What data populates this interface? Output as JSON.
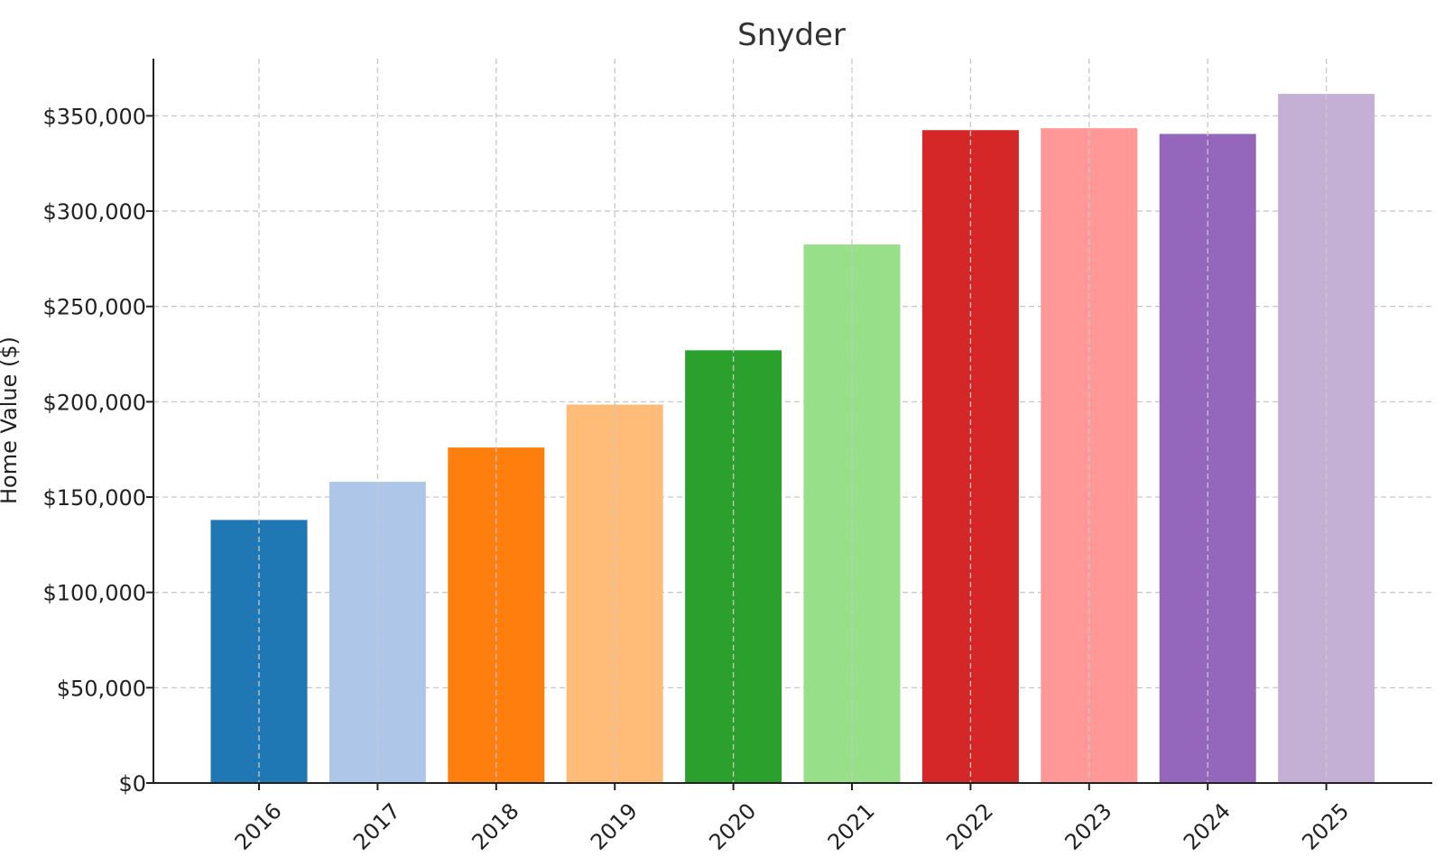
{
  "chart_data": {
    "type": "bar",
    "title": "Snyder",
    "xlabel": "",
    "ylabel": "Home Value ($)",
    "categories": [
      "2016",
      "2017",
      "2018",
      "2019",
      "2020",
      "2021",
      "2022",
      "2023",
      "2024",
      "2025"
    ],
    "values": [
      138000,
      158000,
      176000,
      198500,
      227000,
      282500,
      342500,
      343500,
      340500,
      361500
    ],
    "colors": [
      "#1f77b4",
      "#aec7e8",
      "#ff7f0e",
      "#ffbb78",
      "#2ca02c",
      "#98df8a",
      "#d62728",
      "#ff9896",
      "#9467bd",
      "#c5b0d5"
    ],
    "ylim": [
      0,
      380000
    ],
    "yticks": [
      0,
      50000,
      100000,
      150000,
      200000,
      250000,
      300000,
      350000
    ],
    "ytick_labels": [
      "$0",
      "$50,000",
      "$100,000",
      "$150,000",
      "$200,000",
      "$250,000",
      "$300,000",
      "$350,000"
    ],
    "grid": true
  }
}
